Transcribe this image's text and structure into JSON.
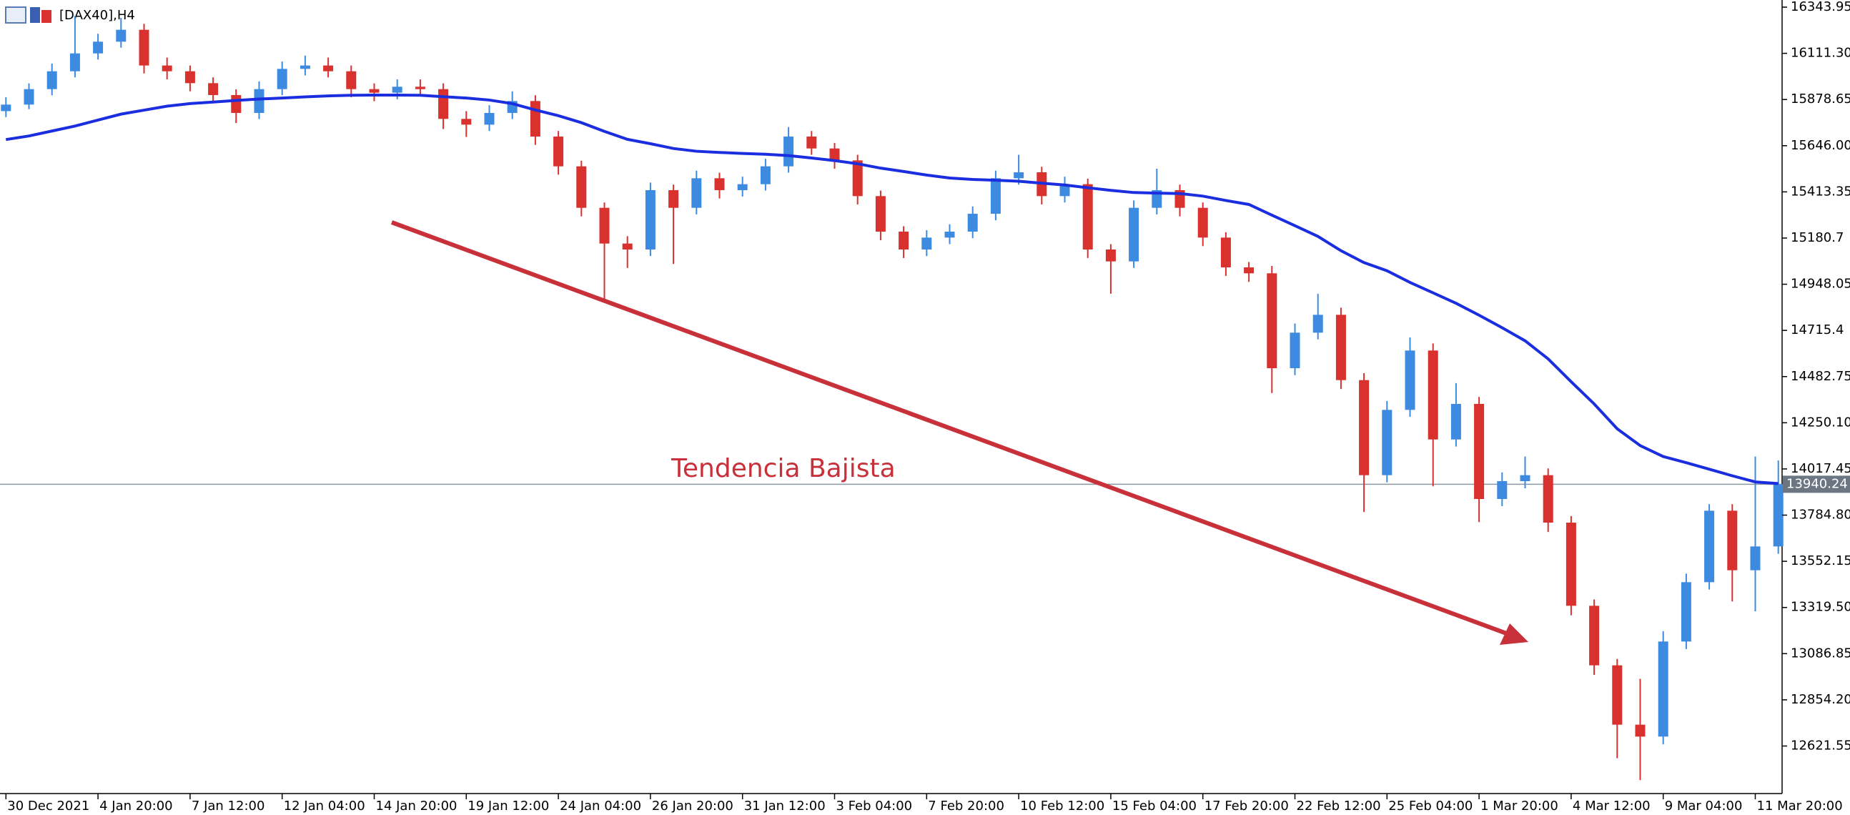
{
  "chart_data": {
    "type": "candlestick",
    "title": "[DAX40],H4",
    "annotation": "Tendencia Bajista",
    "categories": [
      "30 Dec 2021",
      null,
      null,
      null,
      "4 Jan 20:00",
      null,
      null,
      null,
      "7 Jan 12:00",
      null,
      null,
      null,
      "12 Jan 04:00",
      null,
      null,
      null,
      "14 Jan 20:00",
      null,
      null,
      null,
      "19 Jan 12:00",
      null,
      null,
      null,
      "24 Jan 04:00",
      null,
      null,
      null,
      "26 Jan 20:00",
      null,
      null,
      null,
      "31 Jan 12:00",
      null,
      null,
      null,
      "3 Feb 04:00",
      null,
      null,
      null,
      "7 Feb 20:00",
      null,
      null,
      null,
      "10 Feb 12:00",
      null,
      null,
      null,
      "15 Feb 04:00",
      null,
      null,
      null,
      "17 Feb 20:00",
      null,
      null,
      null,
      "22 Feb 12:00",
      null,
      null,
      null,
      "25 Feb 04:00",
      null,
      null,
      null,
      "1 Mar 20:00",
      null,
      null,
      null,
      "4 Mar 12:00",
      null,
      null,
      null,
      "9 Mar 04:00",
      null,
      null,
      null,
      "11 Mar 20:00",
      null
    ],
    "open": [
      15820,
      15853,
      15931,
      16021,
      16111,
      16170,
      16230,
      16050,
      16021,
      15961,
      15901,
      15811,
      15931,
      16033,
      16050,
      16021,
      15931,
      15913,
      15943,
      15931,
      15781,
      15752,
      15811,
      15871,
      15692,
      15542,
      15333,
      15153,
      15123,
      15422,
      15333,
      15482,
      15422,
      15452,
      15542,
      15692,
      15632,
      15572,
      15392,
      15213,
      15123,
      15183,
      15213,
      15303,
      15482,
      15512,
      15392,
      15452,
      15123,
      15063,
      15333,
      15422,
      15333,
      15183,
      15033,
      15003,
      14525,
      14704,
      14794,
      14465,
      13986,
      14315,
      14614,
      14166,
      14345,
      13866,
      13956,
      13986,
      13747,
      13328,
      13028,
      12729,
      12669,
      13148,
      13447,
      13807,
      13507,
      13627
    ],
    "high": [
      15890,
      15960,
      16060,
      16300,
      16210,
      16290,
      16260,
      16090,
      16050,
      15990,
      15930,
      15970,
      16070,
      16100,
      16090,
      16050,
      15960,
      15980,
      15980,
      15960,
      15820,
      15850,
      15920,
      15900,
      15720,
      15570,
      15360,
      15190,
      15460,
      15450,
      15520,
      15510,
      15490,
      15580,
      15740,
      15720,
      15660,
      15600,
      15420,
      15240,
      15220,
      15250,
      15340,
      15520,
      15600,
      15540,
      15490,
      15480,
      15150,
      15370,
      15530,
      15450,
      15360,
      15210,
      15060,
      15040,
      14750,
      14900,
      14830,
      14500,
      14360,
      14680,
      14650,
      14450,
      14380,
      14000,
      14080,
      14020,
      13780,
      13360,
      13060,
      12960,
      13200,
      13490,
      13840,
      13840,
      14080,
      14060
    ],
    "low": [
      15790,
      15830,
      15900,
      15990,
      16080,
      16140,
      16010,
      15980,
      15920,
      15860,
      15760,
      15780,
      15900,
      16000,
      15990,
      15890,
      15870,
      15880,
      15900,
      15730,
      15690,
      15720,
      15780,
      15650,
      15500,
      15290,
      14870,
      15030,
      15090,
      15050,
      15300,
      15380,
      15390,
      15420,
      15510,
      15600,
      15530,
      15350,
      15170,
      15080,
      15090,
      15150,
      15180,
      15270,
      15450,
      15350,
      15360,
      15080,
      14900,
      15030,
      15300,
      15290,
      15140,
      14990,
      14960,
      14400,
      14490,
      14670,
      14420,
      13800,
      13950,
      14280,
      13930,
      14130,
      13750,
      13830,
      13920,
      13700,
      13280,
      12980,
      12560,
      12450,
      12630,
      13110,
      13410,
      13350,
      13300,
      13590
    ],
    "close": [
      15853,
      15931,
      16021,
      16111,
      16170,
      16230,
      16050,
      16021,
      15961,
      15901,
      15811,
      15931,
      16033,
      16050,
      16021,
      15931,
      15913,
      15943,
      15931,
      15781,
      15752,
      15811,
      15871,
      15692,
      15542,
      15333,
      15153,
      15123,
      15422,
      15333,
      15482,
      15422,
      15452,
      15542,
      15692,
      15632,
      15572,
      15392,
      15213,
      15123,
      15183,
      15213,
      15303,
      15482,
      15512,
      15392,
      15452,
      15123,
      15063,
      15333,
      15422,
      15333,
      15183,
      15033,
      15003,
      14525,
      14704,
      14794,
      14465,
      13986,
      14315,
      14614,
      14166,
      14345,
      13866,
      13956,
      13986,
      13747,
      13328,
      13028,
      12729,
      12669,
      13148,
      13447,
      13807,
      13507,
      13627,
      13940
    ],
    "up_color": "#3d8be0",
    "down_color": "#d9312d",
    "ma": {
      "color": "#1a2ee0",
      "values": [
        15677,
        15695,
        15720,
        15745,
        15775,
        15805,
        15825,
        15845,
        15858,
        15866,
        15874,
        15881,
        15886,
        15892,
        15897,
        15900,
        15901,
        15901,
        15900,
        15893,
        15886,
        15876,
        15858,
        15826,
        15797,
        15762,
        15718,
        15678,
        15656,
        15632,
        15618,
        15612,
        15607,
        15603,
        15596,
        15584,
        15571,
        15555,
        15533,
        15516,
        15498,
        15483,
        15476,
        15472,
        15467,
        15457,
        15448,
        15434,
        15421,
        15410,
        15407,
        15405,
        15392,
        15370,
        15350,
        15296,
        15243,
        15189,
        15117,
        15057,
        15016,
        14957,
        14905,
        14852,
        14792,
        14729,
        14663,
        14572,
        14457,
        14345,
        14220,
        14135,
        14080,
        14049,
        14016,
        13983,
        13952,
        13944
      ]
    },
    "price_line": 13940.24,
    "ylim": [
      12382,
      16380
    ],
    "yticks": [
      16343.95,
      {
        "value": 16111.3,
        "label": "16111.30"
      },
      15878.65,
      {
        "value": 15646,
        "label": "15646.00"
      },
      15413.35,
      15180.7,
      14948.05,
      14715.4,
      14482.75,
      {
        "value": 14250.1,
        "label": "14250.10"
      },
      14017.45,
      {
        "value": 13784.8,
        "label": "13784.80"
      },
      13552.15,
      {
        "value": 13319.5,
        "label": "13319.50"
      },
      13086.85,
      {
        "value": 12854.2,
        "label": "12854.20"
      },
      12621.55
    ]
  }
}
